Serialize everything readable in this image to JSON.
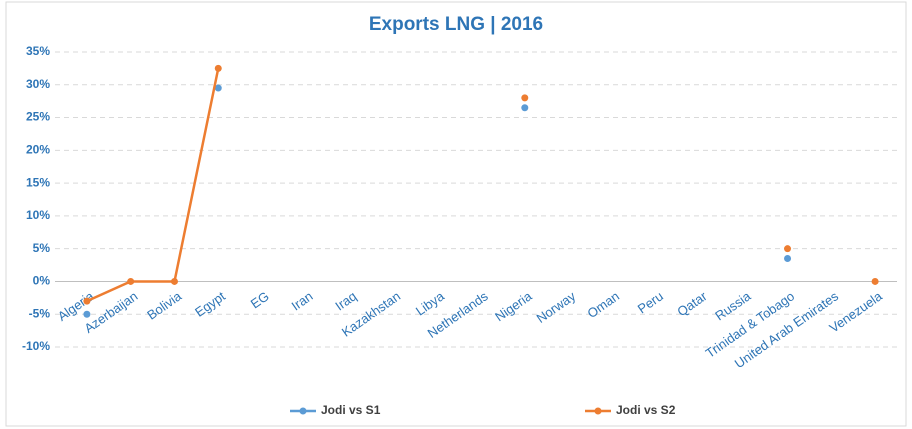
{
  "chart_data": {
    "type": "line",
    "title": "Exports LNG | 2016",
    "categories": [
      "Algeria",
      "Azerbaijan",
      "Bolivia",
      "Egypt",
      "EG",
      "Iran",
      "Iraq",
      "Kazakhstan",
      "Libya",
      "Netherlands",
      "Nigeria",
      "Norway",
      "Oman",
      "Peru",
      "Qatar",
      "Russia",
      "Trinidad & Tobago",
      "United Arab Emirates",
      "Venezuela"
    ],
    "series": [
      {
        "name": "Jodi vs S1",
        "color": "#5b9bd5",
        "values": [
          -5,
          null,
          null,
          29.5,
          null,
          null,
          null,
          null,
          null,
          null,
          26.5,
          null,
          null,
          null,
          null,
          null,
          3.5,
          null,
          null
        ]
      },
      {
        "name": "Jodi vs S2",
        "color": "#ed7d31",
        "values": [
          -3,
          0,
          0,
          32.5,
          null,
          null,
          null,
          null,
          null,
          null,
          28,
          null,
          null,
          null,
          null,
          null,
          5,
          null,
          0
        ]
      }
    ],
    "ylim": [
      -10,
      35
    ],
    "yticks": [
      {
        "value": -10,
        "label": "-10%"
      },
      {
        "value": -5,
        "label": "-5%"
      },
      {
        "value": 0,
        "label": "0%"
      },
      {
        "value": 5,
        "label": "5%"
      },
      {
        "value": 10,
        "label": "10%"
      },
      {
        "value": 15,
        "label": "15%"
      },
      {
        "value": 20,
        "label": "20%"
      },
      {
        "value": 25,
        "label": "25%"
      },
      {
        "value": 30,
        "label": "30%"
      },
      {
        "value": 35,
        "label": "35%"
      }
    ],
    "grid": true,
    "legend": "bottom"
  }
}
